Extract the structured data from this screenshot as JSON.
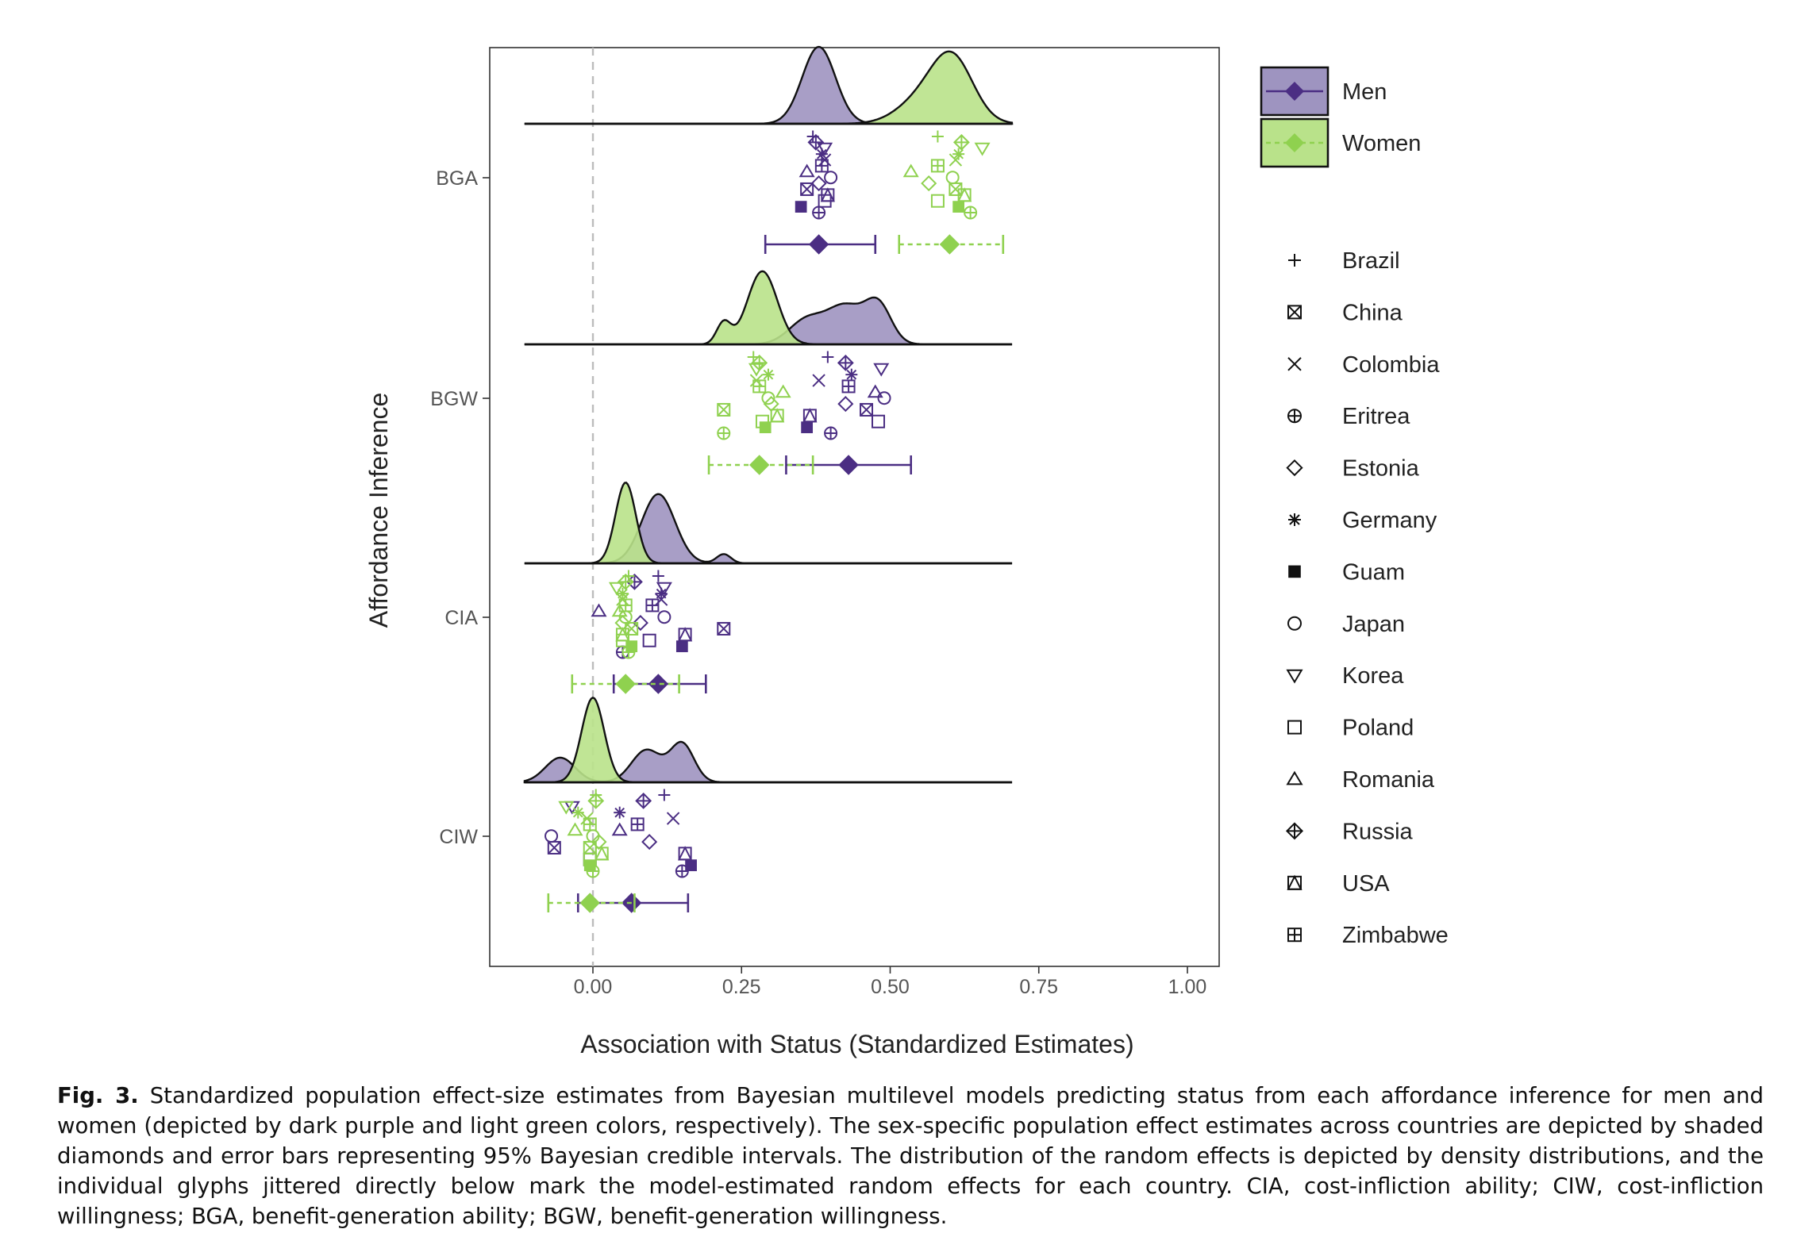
{
  "chart_data": {
    "type": "ridgeline-scatter",
    "xlabel": "Association with Status (Standardized Estimates)",
    "ylabel": "Affordance Inference",
    "xlim": [
      -0.17,
      1.05
    ],
    "xticks": [
      0.0,
      0.25,
      0.5,
      0.75,
      1.0
    ],
    "xtick_labels": [
      "0.00",
      "0.25",
      "0.50",
      "0.75",
      "1.00"
    ],
    "reference_line": 0.0,
    "grid": false,
    "legend_position": "right",
    "colors": {
      "Men": "#4b2e83",
      "Women": "#8fd14f",
      "men_fill": "#9e94c0",
      "women_fill": "#b9e28a"
    },
    "groups": [
      "BGA",
      "BGW",
      "CIA",
      "CIW"
    ],
    "series_legend": [
      {
        "name": "Men",
        "line": "solid"
      },
      {
        "name": "Women",
        "line": "dashed"
      }
    ],
    "glyph_legend": [
      {
        "country": "Brazil",
        "glyph": "plus"
      },
      {
        "country": "China",
        "glyph": "square-x"
      },
      {
        "country": "Colombia",
        "glyph": "x"
      },
      {
        "country": "Eritrea",
        "glyph": "circle-plus"
      },
      {
        "country": "Estonia",
        "glyph": "diamond"
      },
      {
        "country": "Germany",
        "glyph": "asterisk"
      },
      {
        "country": "Guam",
        "glyph": "filled-square"
      },
      {
        "country": "Japan",
        "glyph": "circle"
      },
      {
        "country": "Korea",
        "glyph": "triangle-down"
      },
      {
        "country": "Poland",
        "glyph": "square"
      },
      {
        "country": "Romania",
        "glyph": "triangle-up"
      },
      {
        "country": "Russia",
        "glyph": "diamond-plus"
      },
      {
        "country": "USA",
        "glyph": "square-triangle"
      },
      {
        "country": "Zimbabwe",
        "glyph": "square-plus"
      }
    ],
    "estimates": [
      {
        "group": "BGA",
        "sex": "Men",
        "estimate": 0.38,
        "ci": [
          0.29,
          0.475
        ]
      },
      {
        "group": "BGA",
        "sex": "Women",
        "estimate": 0.6,
        "ci": [
          0.515,
          0.69
        ]
      },
      {
        "group": "BGW",
        "sex": "Men",
        "estimate": 0.43,
        "ci": [
          0.325,
          0.535
        ]
      },
      {
        "group": "BGW",
        "sex": "Women",
        "estimate": 0.28,
        "ci": [
          0.195,
          0.37
        ]
      },
      {
        "group": "CIA",
        "sex": "Men",
        "estimate": 0.11,
        "ci": [
          0.035,
          0.19
        ]
      },
      {
        "group": "CIA",
        "sex": "Women",
        "estimate": 0.055,
        "ci": [
          -0.035,
          0.145
        ]
      },
      {
        "group": "CIW",
        "sex": "Men",
        "estimate": 0.065,
        "ci": [
          -0.025,
          0.16
        ]
      },
      {
        "group": "CIW",
        "sex": "Women",
        "estimate": -0.005,
        "ci": [
          -0.075,
          0.07
        ]
      }
    ],
    "densities": [
      {
        "group": "BGA",
        "sex": "Men",
        "peaks": [
          [
            0.38,
            1.0,
            0.028
          ]
        ]
      },
      {
        "group": "BGA",
        "sex": "Women",
        "peaks": [
          [
            0.605,
            0.82,
            0.035
          ],
          [
            0.55,
            0.28,
            0.04
          ]
        ]
      },
      {
        "group": "BGW",
        "sex": "Men",
        "peaks": [
          [
            0.36,
            0.32,
            0.03
          ],
          [
            0.425,
            0.48,
            0.03
          ],
          [
            0.48,
            0.5,
            0.022
          ]
        ]
      },
      {
        "group": "BGW",
        "sex": "Women",
        "peaks": [
          [
            0.285,
            0.95,
            0.025
          ],
          [
            0.22,
            0.28,
            0.012
          ]
        ]
      },
      {
        "group": "CIA",
        "sex": "Men",
        "peaks": [
          [
            0.11,
            0.9,
            0.028
          ],
          [
            0.22,
            0.12,
            0.012
          ]
        ]
      },
      {
        "group": "CIA",
        "sex": "Women",
        "peaks": [
          [
            0.055,
            1.05,
            0.017
          ]
        ]
      },
      {
        "group": "CIW",
        "sex": "Men",
        "peaks": [
          [
            -0.055,
            0.32,
            0.025
          ],
          [
            0.09,
            0.42,
            0.025
          ],
          [
            0.15,
            0.5,
            0.02
          ]
        ]
      },
      {
        "group": "CIW",
        "sex": "Women",
        "peaks": [
          [
            0.0,
            1.1,
            0.019
          ]
        ]
      }
    ],
    "country_points": {
      "BGA": {
        "Men": [
          {
            "country": "Brazil",
            "x": 0.37
          },
          {
            "country": "China",
            "x": 0.36
          },
          {
            "country": "Colombia",
            "x": 0.39
          },
          {
            "country": "Eritrea",
            "x": 0.38
          },
          {
            "country": "Estonia",
            "x": 0.38
          },
          {
            "country": "Germany",
            "x": 0.385
          },
          {
            "country": "Guam",
            "x": 0.35
          },
          {
            "country": "Japan",
            "x": 0.4
          },
          {
            "country": "Korea",
            "x": 0.39
          },
          {
            "country": "Poland",
            "x": 0.39
          },
          {
            "country": "Romania",
            "x": 0.36
          },
          {
            "country": "Russia",
            "x": 0.375
          },
          {
            "country": "USA",
            "x": 0.395
          },
          {
            "country": "Zimbabwe",
            "x": 0.385
          }
        ],
        "Women": [
          {
            "country": "Brazil",
            "x": 0.58
          },
          {
            "country": "China",
            "x": 0.61
          },
          {
            "country": "Colombia",
            "x": 0.61
          },
          {
            "country": "Eritrea",
            "x": 0.635
          },
          {
            "country": "Estonia",
            "x": 0.565
          },
          {
            "country": "Germany",
            "x": 0.615
          },
          {
            "country": "Guam",
            "x": 0.615
          },
          {
            "country": "Japan",
            "x": 0.605
          },
          {
            "country": "Korea",
            "x": 0.655
          },
          {
            "country": "Poland",
            "x": 0.58
          },
          {
            "country": "Romania",
            "x": 0.535
          },
          {
            "country": "Russia",
            "x": 0.62
          },
          {
            "country": "USA",
            "x": 0.625
          },
          {
            "country": "Zimbabwe",
            "x": 0.58
          }
        ]
      },
      "BGW": {
        "Men": [
          {
            "country": "Brazil",
            "x": 0.395
          },
          {
            "country": "China",
            "x": 0.46
          },
          {
            "country": "Colombia",
            "x": 0.38
          },
          {
            "country": "Eritrea",
            "x": 0.4
          },
          {
            "country": "Estonia",
            "x": 0.425
          },
          {
            "country": "Germany",
            "x": 0.435
          },
          {
            "country": "Guam",
            "x": 0.36
          },
          {
            "country": "Japan",
            "x": 0.49
          },
          {
            "country": "Korea",
            "x": 0.485
          },
          {
            "country": "Poland",
            "x": 0.48
          },
          {
            "country": "Romania",
            "x": 0.475
          },
          {
            "country": "Russia",
            "x": 0.425
          },
          {
            "country": "USA",
            "x": 0.365
          },
          {
            "country": "Zimbabwe",
            "x": 0.43
          }
        ],
        "Women": [
          {
            "country": "Brazil",
            "x": 0.27
          },
          {
            "country": "China",
            "x": 0.22
          },
          {
            "country": "Colombia",
            "x": 0.275
          },
          {
            "country": "Eritrea",
            "x": 0.22
          },
          {
            "country": "Estonia",
            "x": 0.3
          },
          {
            "country": "Germany",
            "x": 0.295
          },
          {
            "country": "Guam",
            "x": 0.29
          },
          {
            "country": "Japan",
            "x": 0.295
          },
          {
            "country": "Korea",
            "x": 0.275
          },
          {
            "country": "Poland",
            "x": 0.285
          },
          {
            "country": "Romania",
            "x": 0.32
          },
          {
            "country": "Russia",
            "x": 0.28
          },
          {
            "country": "USA",
            "x": 0.31
          },
          {
            "country": "Zimbabwe",
            "x": 0.28
          }
        ]
      },
      "CIA": {
        "Men": [
          {
            "country": "Brazil",
            "x": 0.11
          },
          {
            "country": "China",
            "x": 0.22
          },
          {
            "country": "Colombia",
            "x": 0.115
          },
          {
            "country": "Eritrea",
            "x": 0.05
          },
          {
            "country": "Estonia",
            "x": 0.08
          },
          {
            "country": "Germany",
            "x": 0.115
          },
          {
            "country": "Guam",
            "x": 0.15
          },
          {
            "country": "Japan",
            "x": 0.12
          },
          {
            "country": "Korea",
            "x": 0.12
          },
          {
            "country": "Poland",
            "x": 0.095
          },
          {
            "country": "Romania",
            "x": 0.01
          },
          {
            "country": "Russia",
            "x": 0.07
          },
          {
            "country": "USA",
            "x": 0.155
          },
          {
            "country": "Zimbabwe",
            "x": 0.1
          }
        ],
        "Women": [
          {
            "country": "Brazil",
            "x": 0.06
          },
          {
            "country": "China",
            "x": 0.065
          },
          {
            "country": "Colombia",
            "x": 0.05
          },
          {
            "country": "Eritrea",
            "x": 0.06
          },
          {
            "country": "Estonia",
            "x": 0.05
          },
          {
            "country": "Germany",
            "x": 0.05
          },
          {
            "country": "Guam",
            "x": 0.065
          },
          {
            "country": "Japan",
            "x": 0.055
          },
          {
            "country": "Korea",
            "x": 0.04
          },
          {
            "country": "Poland",
            "x": 0.05
          },
          {
            "country": "Romania",
            "x": 0.045
          },
          {
            "country": "Russia",
            "x": 0.055
          },
          {
            "country": "USA",
            "x": 0.05
          },
          {
            "country": "Zimbabwe",
            "x": 0.055
          }
        ]
      },
      "CIW": {
        "Men": [
          {
            "country": "Brazil",
            "x": 0.12
          },
          {
            "country": "China",
            "x": -0.065
          },
          {
            "country": "Colombia",
            "x": 0.135
          },
          {
            "country": "Eritrea",
            "x": 0.15
          },
          {
            "country": "Estonia",
            "x": 0.095
          },
          {
            "country": "Germany",
            "x": 0.045
          },
          {
            "country": "Guam",
            "x": 0.165
          },
          {
            "country": "Japan",
            "x": -0.07
          },
          {
            "country": "Korea",
            "x": -0.035
          },
          {
            "country": "Poland",
            "x": -0.005
          },
          {
            "country": "Romania",
            "x": 0.045
          },
          {
            "country": "Russia",
            "x": 0.085
          },
          {
            "country": "USA",
            "x": 0.155
          },
          {
            "country": "Zimbabwe",
            "x": 0.075
          }
        ],
        "Women": [
          {
            "country": "Brazil",
            "x": 0.005
          },
          {
            "country": "China",
            "x": -0.005
          },
          {
            "country": "Colombia",
            "x": -0.01
          },
          {
            "country": "Eritrea",
            "x": 0.0
          },
          {
            "country": "Estonia",
            "x": 0.01
          },
          {
            "country": "Germany",
            "x": -0.025
          },
          {
            "country": "Guam",
            "x": -0.005
          },
          {
            "country": "Japan",
            "x": 0.0
          },
          {
            "country": "Korea",
            "x": -0.045
          },
          {
            "country": "Poland",
            "x": -0.005
          },
          {
            "country": "Romania",
            "x": -0.03
          },
          {
            "country": "Russia",
            "x": 0.005
          },
          {
            "country": "USA",
            "x": 0.015
          },
          {
            "country": "Zimbabwe",
            "x": -0.005
          }
        ]
      }
    }
  },
  "caption": {
    "label": "Fig. 3.",
    "text": "Standardized population effect-size estimates from Bayesian multilevel models predicting status from each affordance inference for men and women (depicted by dark purple and light green colors, respectively). The sex-specific population effect estimates across countries are depicted by shaded diamonds and error bars representing 95% Bayesian credible intervals. The distribution of the random effects is depicted by density distributions, and the individual glyphs jittered directly below mark the model-estimated random effects for each country. CIA, cost-infliction ability; CIW, cost-infliction willingness; BGA, benefit-generation ability; BGW, benefit-generation willingness."
  }
}
